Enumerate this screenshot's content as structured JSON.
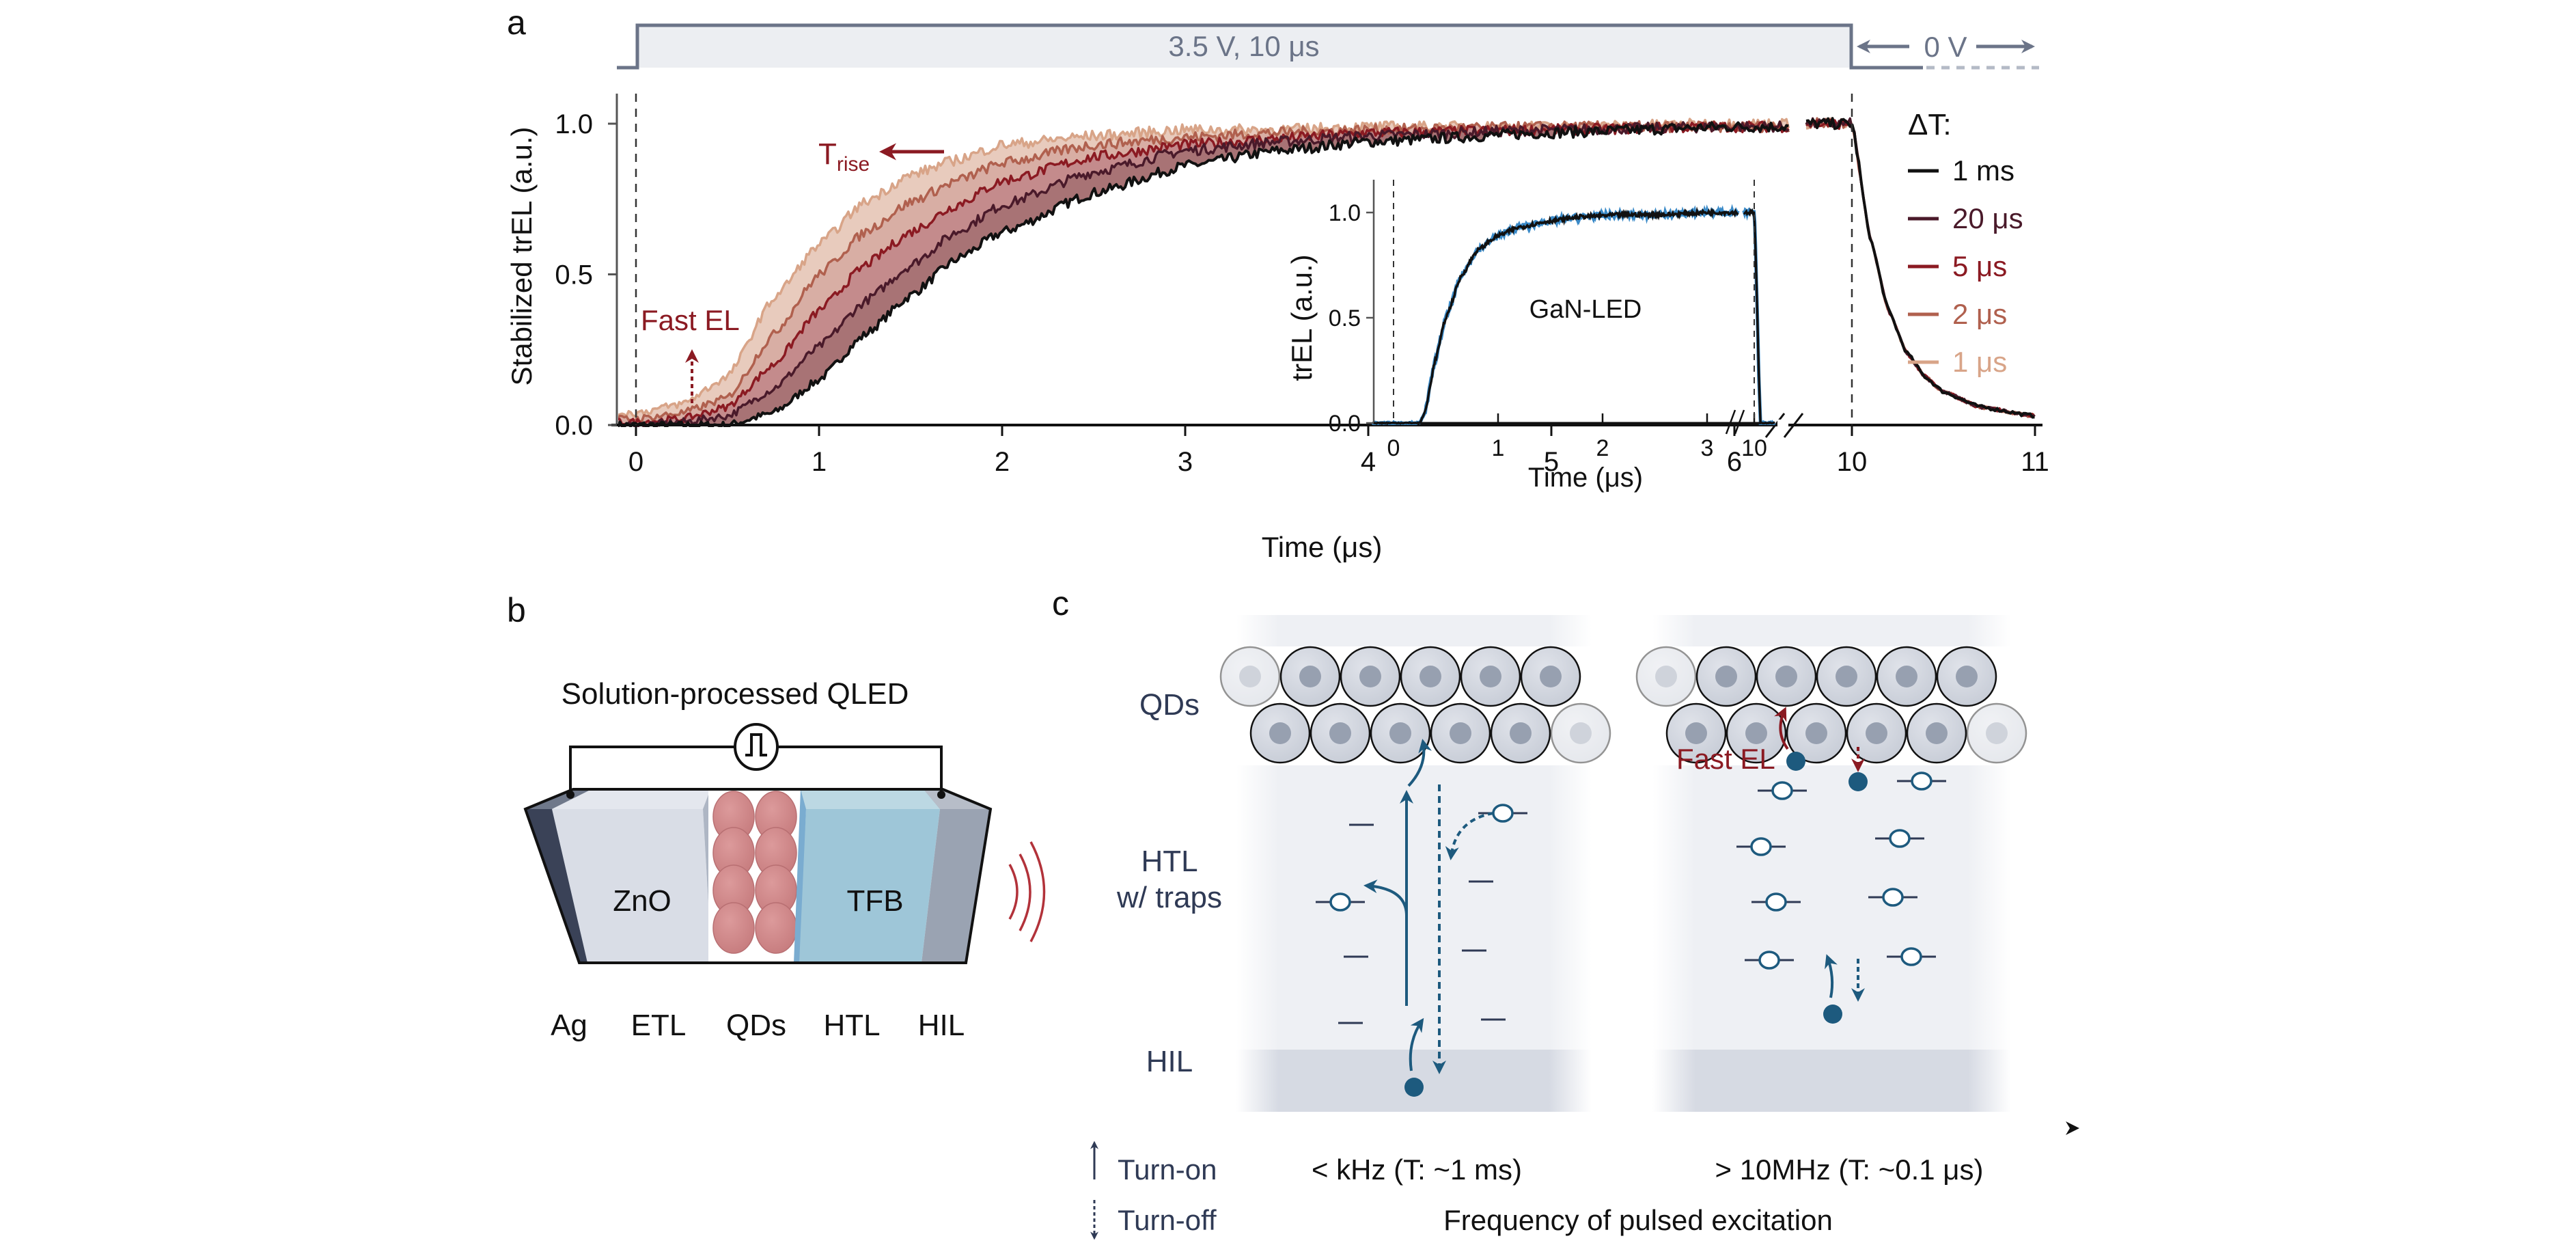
{
  "figure": {
    "panel_labels": {
      "a": "a",
      "b": "b",
      "c": "c"
    },
    "pulse": {
      "on_label": "3.5 V, 10 μs",
      "off_label": "0 V",
      "stroke_color": "#6b7488",
      "fill_color": "#eceef2"
    },
    "annotations": {
      "fast_el": "Fast EL",
      "t_rise_main": "T",
      "t_rise_sub": "rise",
      "annotation_color": "#8b1a22"
    },
    "legend": {
      "title": "ΔT:"
    }
  },
  "chart_data": [
    {
      "type": "line",
      "title": "",
      "xlabel": "Time (μs)",
      "ylabel": "Stabilized trEL (a.u.)",
      "xlim": [
        -0.15,
        11
      ],
      "x_break": [
        6.3,
        9.75
      ],
      "ylim": [
        0,
        1.1
      ],
      "x_ticks": [
        0,
        1,
        2,
        3,
        4,
        5,
        6,
        10,
        11
      ],
      "x_tick_labels": [
        "0",
        "1",
        "2",
        "3",
        "4",
        "5",
        "6",
        "10",
        "11"
      ],
      "y_ticks": [
        0.0,
        0.5,
        1.0
      ],
      "y_tick_labels": [
        "0.0",
        "0.5",
        "1.0"
      ],
      "vlines": [
        0,
        10
      ],
      "legend_position": "right",
      "fill_between_series": true,
      "x": [
        0,
        0.25,
        0.5,
        0.75,
        1.0,
        1.25,
        1.5,
        1.75,
        2.0,
        2.5,
        3.0,
        3.5,
        4.0,
        5.0,
        6.0,
        6.3,
        9.75,
        10.0,
        10.1,
        10.2,
        10.3,
        10.4,
        10.5,
        10.7,
        11.0
      ],
      "series": [
        {
          "name": "1 ms",
          "color": "#111111",
          "fill": "#a87375",
          "values": [
            0.0,
            0.0,
            0.0,
            0.04,
            0.15,
            0.3,
            0.43,
            0.55,
            0.64,
            0.77,
            0.86,
            0.91,
            0.94,
            0.97,
            0.99,
            0.99,
            1.0,
            1.0,
            0.62,
            0.38,
            0.24,
            0.16,
            0.11,
            0.06,
            0.03
          ]
        },
        {
          "name": "20 μs",
          "color": "#4a1a2a",
          "fill": "#c48b8c",
          "values": [
            0.0,
            0.01,
            0.03,
            0.12,
            0.26,
            0.41,
            0.53,
            0.64,
            0.73,
            0.84,
            0.91,
            0.94,
            0.96,
            0.98,
            0.99,
            0.99,
            1.0,
            1.0,
            0.62,
            0.38,
            0.24,
            0.16,
            0.11,
            0.06,
            0.03
          ]
        },
        {
          "name": "5 μs",
          "color": "#8b1a22",
          "fill": "#d8aea4",
          "values": [
            0.01,
            0.02,
            0.06,
            0.2,
            0.38,
            0.53,
            0.64,
            0.73,
            0.81,
            0.89,
            0.93,
            0.95,
            0.97,
            0.98,
            0.99,
            0.99,
            1.0,
            1.0,
            0.62,
            0.38,
            0.24,
            0.16,
            0.11,
            0.06,
            0.03
          ]
        },
        {
          "name": "2 μs",
          "color": "#b0604e",
          "fill": "#e8cbbd",
          "values": [
            0.02,
            0.04,
            0.09,
            0.3,
            0.5,
            0.64,
            0.74,
            0.81,
            0.87,
            0.93,
            0.955,
            0.97,
            0.98,
            0.99,
            0.99,
            0.99,
            1.0,
            1.0,
            0.62,
            0.38,
            0.24,
            0.16,
            0.11,
            0.06,
            0.03
          ]
        },
        {
          "name": "1 μs",
          "color": "#d8a488",
          "fill": null,
          "values": [
            0.04,
            0.07,
            0.16,
            0.42,
            0.6,
            0.74,
            0.83,
            0.88,
            0.93,
            0.96,
            0.98,
            0.98,
            0.99,
            0.99,
            1.0,
            1.0,
            1.0,
            1.0,
            0.62,
            0.38,
            0.24,
            0.16,
            0.11,
            0.06,
            0.03
          ]
        }
      ]
    },
    {
      "type": "line",
      "title": "GaN-LED",
      "xlabel": "Time (μs)",
      "ylabel": "trEL (a.u.)",
      "xlim": [
        -0.2,
        10.2
      ],
      "x_break": [
        3.3,
        9.9
      ],
      "ylim": [
        0,
        1.15
      ],
      "x_ticks": [
        0,
        1,
        2,
        3,
        10
      ],
      "x_tick_labels": [
        "0",
        "1",
        "2",
        "3",
        "10"
      ],
      "y_ticks": [
        0.0,
        0.5,
        1.0
      ],
      "y_tick_labels": [
        "0.0",
        "0.5",
        "1.0"
      ],
      "vlines": [
        0,
        10
      ],
      "x": [
        -0.2,
        0.0,
        0.25,
        0.3,
        0.4,
        0.5,
        0.65,
        0.8,
        1.0,
        1.2,
        1.5,
        1.8,
        2.2,
        2.6,
        3.0,
        3.3,
        9.9,
        10.0,
        10.06,
        10.2
      ],
      "series": [
        {
          "name": "GaN-LED (blue)",
          "color": "#3a8ac8",
          "values": [
            0.0,
            0.0,
            0.0,
            0.05,
            0.3,
            0.5,
            0.7,
            0.82,
            0.89,
            0.93,
            0.96,
            0.98,
            0.99,
            0.99,
            1.0,
            1.0,
            1.0,
            1.0,
            0.0,
            0.0
          ]
        },
        {
          "name": "GaN-LED (black)",
          "color": "#111111",
          "values": [
            0.0,
            0.0,
            0.0,
            0.05,
            0.3,
            0.5,
            0.7,
            0.82,
            0.89,
            0.93,
            0.96,
            0.98,
            0.99,
            0.99,
            1.0,
            1.0,
            1.0,
            1.0,
            0.0,
            0.0
          ]
        }
      ]
    }
  ],
  "device": {
    "title": "Solution-processed QLED",
    "layer_texts": {
      "etl": "ZnO",
      "htl": "TFB"
    },
    "layer_labels": [
      "Ag",
      "ETL",
      "QDs",
      "HTL",
      "HIL"
    ],
    "colors": {
      "ag": "#3a4257",
      "etl": "#d9dde6",
      "qd": "#d48c8e",
      "htl": "#9ec6d8",
      "hil": "#9aa3b2",
      "emission": "#b2323a"
    }
  },
  "mechanism": {
    "row_labels": {
      "qds": "QDs",
      "htl_line1": "HTL",
      "htl_line2": "w/ traps",
      "hil": "HIL"
    },
    "fast_el": "Fast EL",
    "legend_turn_on": "Turn-on",
    "legend_turn_off": "Turn-off",
    "low_freq": "< kHz (T: ~1 ms)",
    "high_freq": "> 10MHz (T: ~0.1 μs)",
    "axis_label": "Frequency of pulsed excitation",
    "carrier_color": "#1d5a7e",
    "text_color": "#2f3a55"
  }
}
